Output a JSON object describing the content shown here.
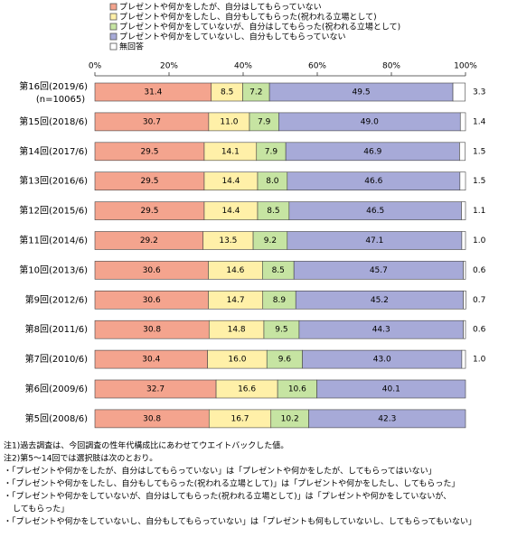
{
  "chart_data": {
    "type": "stacked-bar-horizontal",
    "categories": [
      "第16回(2019/6)",
      "第15回(2018/6)",
      "第14回(2017/6)",
      "第13回(2016/6)",
      "第12回(2015/6)",
      "第11回(2014/6)",
      "第10回(2013/6)",
      "第9回(2012/6)",
      "第8回(2011/6)",
      "第7回(2010/6)",
      "第6回(2009/6)",
      "第5回(2008/6)"
    ],
    "sample_note": "(n=10065)",
    "series": [
      {
        "name": "プレゼントや何かをしたが、自分はしてもらっていない",
        "color": "#f4a48e",
        "values": [
          31.4,
          30.7,
          29.5,
          29.5,
          29.5,
          29.2,
          30.6,
          30.6,
          30.8,
          30.4,
          32.7,
          30.8
        ],
        "value_labels": [
          "31.4",
          "30.7",
          "29.5",
          "29.5",
          "29.5",
          "29.2",
          "30.6",
          "30.6",
          "30.8",
          "30.4",
          "32.7",
          "30.8"
        ]
      },
      {
        "name": "プレゼントや何かをしたし、自分もしてもらった(祝われる立場として)",
        "color": "#fff0a8",
        "values": [
          8.5,
          11.0,
          14.1,
          14.4,
          14.4,
          13.5,
          14.6,
          14.7,
          14.8,
          16.0,
          16.6,
          16.7
        ],
        "value_labels": [
          "8.5",
          "11.0",
          "14.1",
          "14.4",
          "14.4",
          "13.5",
          "14.6",
          "14.7",
          "14.8",
          "16.0",
          "16.6",
          "16.7"
        ]
      },
      {
        "name": "プレゼントや何かをしていないが、自分はしてもらった(祝われる立場として)",
        "color": "#c6e4a2",
        "values": [
          7.2,
          7.9,
          7.9,
          8.0,
          8.5,
          9.2,
          8.5,
          8.9,
          9.5,
          9.6,
          10.6,
          10.2
        ],
        "value_labels": [
          "7.2",
          "7.9",
          "7.9",
          "8.0",
          "8.5",
          "9.2",
          "8.5",
          "8.9",
          "9.5",
          "9.6",
          "10.6",
          "10.2"
        ]
      },
      {
        "name": "プレゼントや何かをしていないし、自分もしてもらっていない",
        "color": "#a7aad8",
        "values": [
          49.5,
          49.0,
          46.9,
          46.6,
          46.5,
          47.1,
          45.7,
          45.2,
          44.3,
          43.0,
          40.1,
          42.3
        ],
        "value_labels": [
          "49.5",
          "49.0",
          "46.9",
          "46.6",
          "46.5",
          "47.1",
          "45.7",
          "45.2",
          "44.3",
          "43.0",
          "40.1",
          "42.3"
        ]
      },
      {
        "name": "無回答",
        "color": "#ffffff",
        "values": [
          3.3,
          1.4,
          1.5,
          1.5,
          1.1,
          1.0,
          0.6,
          0.7,
          0.6,
          1.0,
          null,
          null
        ],
        "value_labels": [
          "3.3",
          "1.4",
          "1.5",
          "1.5",
          "1.1",
          "1.0",
          "0.6",
          "0.7",
          "0.6",
          "1.0",
          null,
          null
        ]
      }
    ],
    "xlim": [
      0,
      100
    ],
    "xticks": [
      {
        "value": 0,
        "label": "0%"
      },
      {
        "value": 20,
        "label": "20%"
      },
      {
        "value": 40,
        "label": "40%"
      },
      {
        "value": 60,
        "label": "60%"
      },
      {
        "value": 80,
        "label": "80%"
      },
      {
        "value": 100,
        "label": "100%"
      }
    ],
    "notes": [
      "注1)過去調査は、今回調査の性年代構成比にあわせてウエイトバックした値。",
      "注2)第5～14回では選択肢は次のとおり。",
      "・「プレゼントや何かをしたが、自分はしてもらっていない」は「プレゼントや何かをしたが、してもらってはいない」",
      "・「プレゼントや何かをしたし、自分もしてもらった(祝われる立場として)」は「プレゼントや何かをしたし、してもらった」",
      "・「プレゼントや何かをしていないが、自分はしてもらった(祝われる立場として)」は「プレゼントや何かをしていないが、",
      "してもらった」",
      "・「プレゼントや何かをしていないし、自分もしてもらっていない」は「プレゼントも何もしていないし、してもらってもいない」"
    ]
  }
}
